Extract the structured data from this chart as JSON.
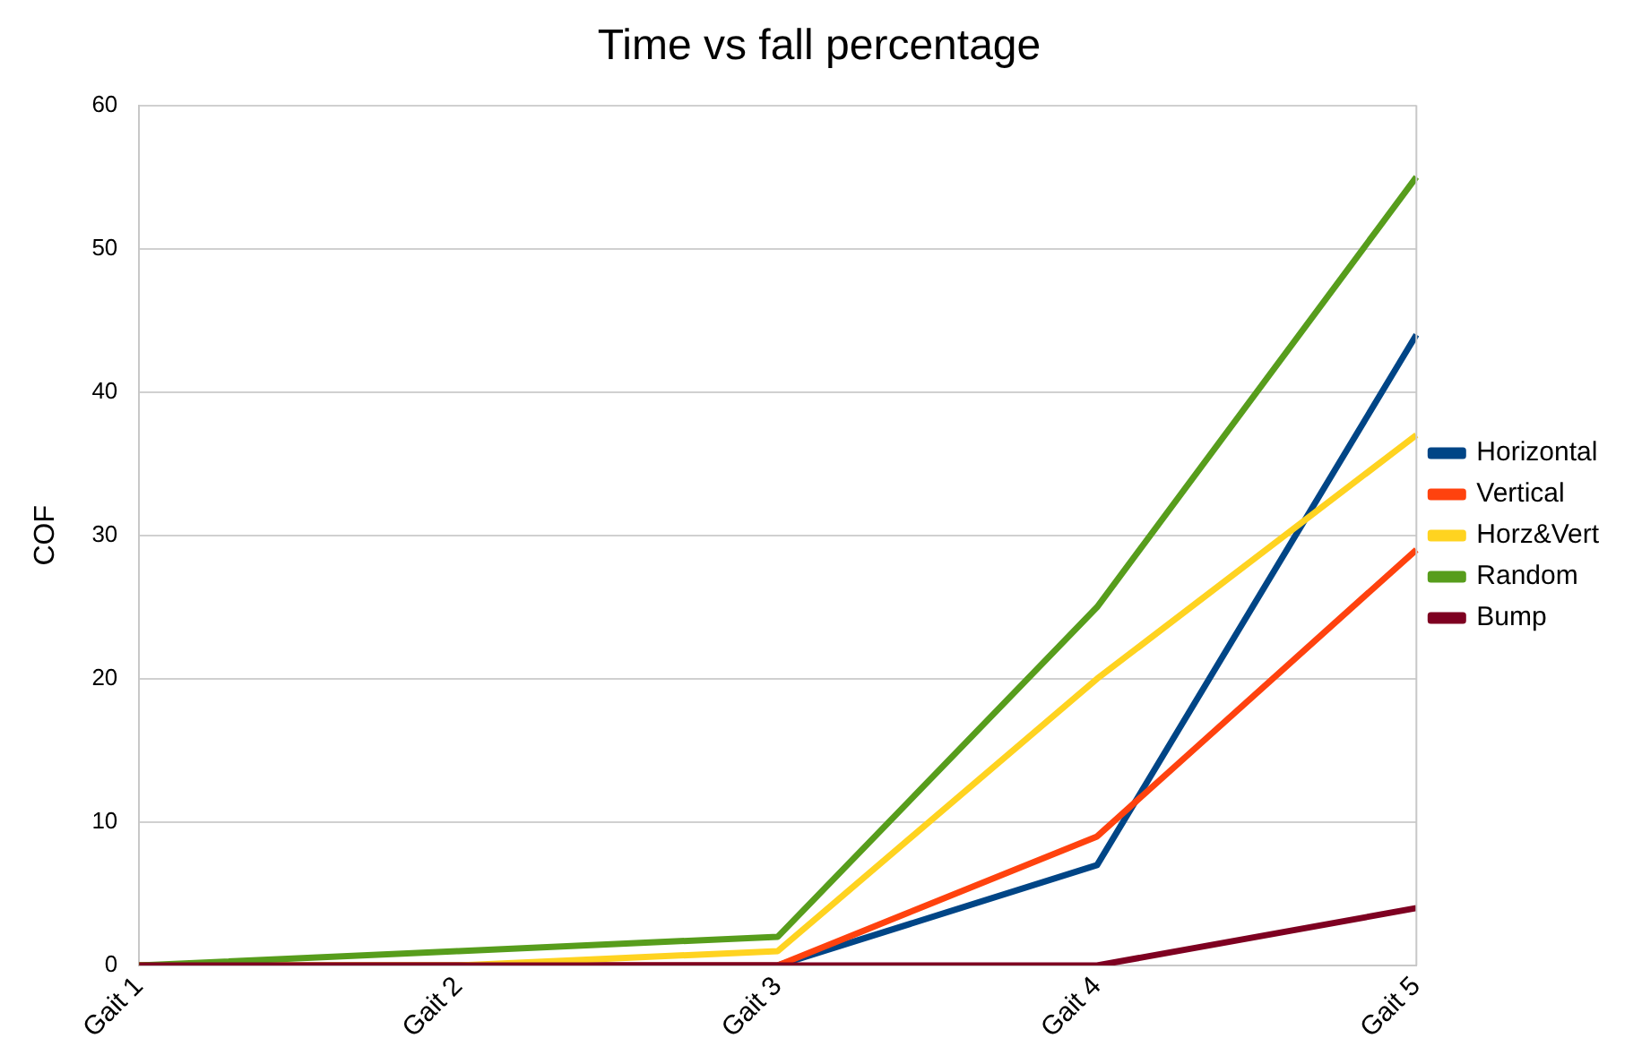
{
  "chart_data": {
    "type": "line",
    "title": "Time vs fall percentage",
    "ylabel": "COF",
    "categories": [
      "Gait 1",
      "Gait 2",
      "Gait 3",
      "Gait 4",
      "Gait 5"
    ],
    "series": [
      {
        "name": "Horizontal",
        "color": "#004586",
        "values": [
          0,
          0,
          0,
          7,
          44
        ]
      },
      {
        "name": "Vertical",
        "color": "#ff420e",
        "values": [
          0,
          0,
          0,
          9,
          29
        ]
      },
      {
        "name": "Horz&Vert",
        "color": "#ffd320",
        "values": [
          0,
          0,
          1,
          20,
          37
        ]
      },
      {
        "name": "Random",
        "color": "#579d1c",
        "values": [
          0,
          1,
          2,
          25,
          55
        ]
      },
      {
        "name": "Bump",
        "color": "#7e0021",
        "values": [
          0,
          0,
          0,
          0,
          4
        ]
      }
    ],
    "ylim": [
      0,
      60
    ],
    "yticks": [
      0,
      10,
      20,
      30,
      40,
      50,
      60
    ],
    "grid": "y",
    "legend": "right",
    "marker": "none",
    "line_style": "solid"
  }
}
